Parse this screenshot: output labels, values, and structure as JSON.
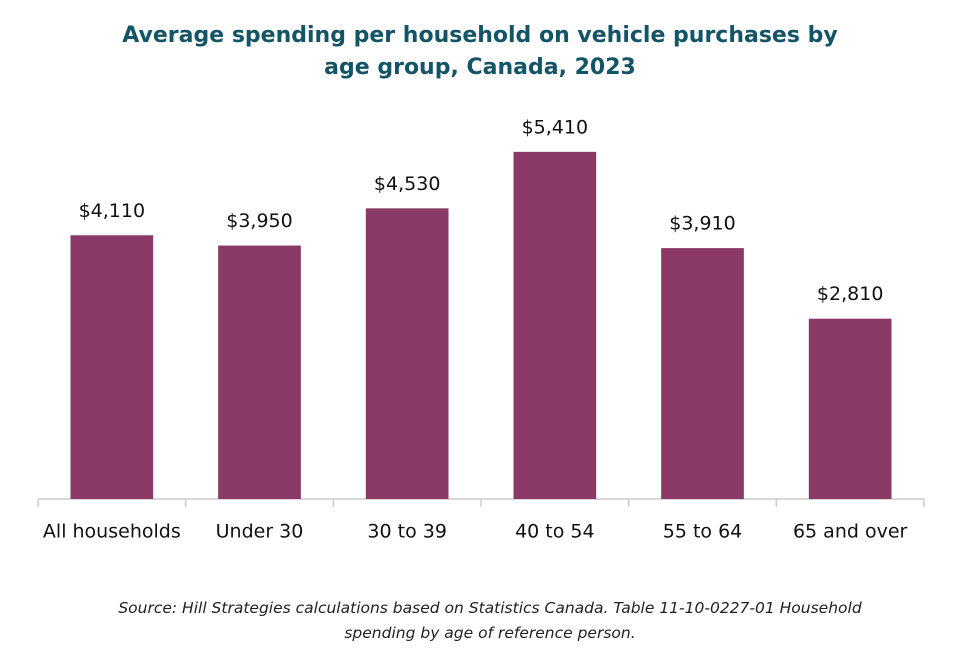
{
  "chart_data": {
    "type": "bar",
    "title": "Average spending per household on vehicle purchases by age group, Canada, 2023",
    "categories": [
      "All households",
      "Under 30",
      "30 to 39",
      "40 to 54",
      "55 to 64",
      "65 and over"
    ],
    "values": [
      4110,
      3950,
      4530,
      5410,
      3910,
      2810
    ],
    "value_labels": [
      "$4,110",
      "$3,950",
      "$4,530",
      "$5,410",
      "$3,910",
      "$2,810"
    ],
    "color": "#8b3a68",
    "ylim": [
      0,
      6000
    ],
    "source": "Source: Hill Strategies calculations based on Statistics Canada. Table 11-10-0227-01  Household spending by age of reference person."
  }
}
